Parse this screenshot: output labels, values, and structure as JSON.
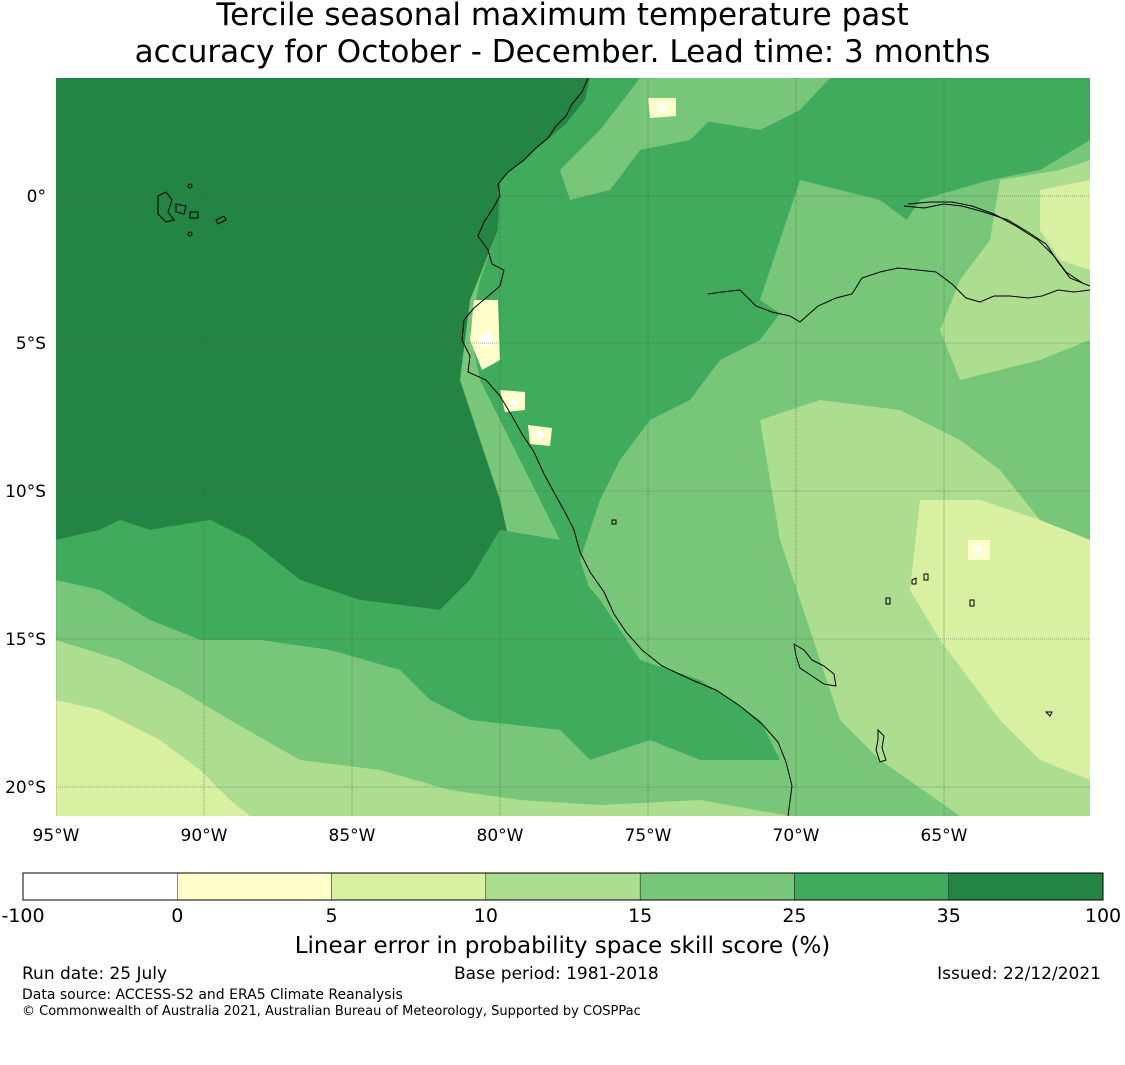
{
  "title": {
    "line1": "Tercile seasonal maximum temperature past",
    "line2": "accuracy for October - December. Lead time: 3 months"
  },
  "map": {
    "lon_labels": [
      "95°W",
      "90°W",
      "85°W",
      "80°W",
      "75°W",
      "70°W",
      "65°W"
    ],
    "lat_labels": [
      "0°",
      "5°S",
      "10°S",
      "15°S",
      "20°S"
    ],
    "colors": {
      "ocean_deep": "#238443",
      "band_35": "#41ab5d",
      "band_25": "#78c679",
      "band_15": "#addd8e",
      "band_10": "#d9f0a3",
      "band_5": "#ffffcc",
      "band_0": "#ffffff",
      "coast": "#000000",
      "grid": "#3a6a3a"
    }
  },
  "colorbar": {
    "ticks": [
      "-100",
      "0",
      "5",
      "10",
      "15",
      "25",
      "35",
      "100"
    ],
    "colors": [
      "#ffffff",
      "#ffffcc",
      "#d9f0a3",
      "#addd8e",
      "#78c679",
      "#41ab5d",
      "#238443"
    ],
    "label": "Linear error in probability space skill score (%)"
  },
  "footer": {
    "run_date": "Run date: 25 July",
    "base_period": "Base period: 1981-2018",
    "issued": "Issued: 22/12/2021",
    "data_source": "Data source: ACCESS-S2 and ERA5 Climate Reanalysis",
    "copyright": "© Commonwealth of Australia 2021, Australian Bureau of Meteorology, Supported by COSPPac"
  }
}
